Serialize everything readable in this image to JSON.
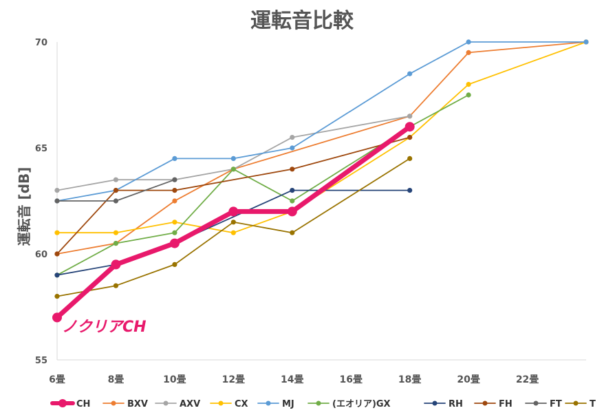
{
  "chart_data": {
    "type": "line",
    "title": "運転音比較",
    "ylabel": "運転音 [dB]",
    "xlabel": "",
    "categories": [
      "6畳",
      "8畳",
      "10畳",
      "12畳",
      "14畳",
      "16畳",
      "18畳",
      "20畳",
      "22畳",
      ""
    ],
    "ylim": [
      55,
      70
    ],
    "yticks": [
      "55",
      "60",
      "65",
      "70"
    ],
    "grid": false,
    "legend_position": "bottom",
    "annotation": {
      "text": "ノクリアCH",
      "color": "#e8196b"
    },
    "series": [
      {
        "name": "CH",
        "color": "#e8196b",
        "highlight": true,
        "values": [
          57,
          59.5,
          60.5,
          62,
          62,
          null,
          66,
          null,
          null,
          null
        ]
      },
      {
        "name": "BXV",
        "color": "#ed7d31",
        "values": [
          60,
          60.5,
          62.5,
          64,
          null,
          null,
          66.5,
          69.5,
          null,
          70
        ]
      },
      {
        "name": "AXV",
        "color": "#a5a5a5",
        "values": [
          63,
          63.5,
          63.5,
          64,
          65.5,
          null,
          66.5,
          null,
          null,
          null
        ]
      },
      {
        "name": "CX",
        "color": "#ffc000",
        "values": [
          61,
          61,
          61.5,
          61,
          62,
          null,
          65.5,
          68,
          null,
          70
        ]
      },
      {
        "name": "MJ",
        "color": "#5b9bd5",
        "values": [
          62.5,
          63,
          64.5,
          64.5,
          65,
          null,
          68.5,
          70,
          null,
          70
        ]
      },
      {
        "name": "(エオリア)GX",
        "color": "#70ad47",
        "values": [
          59,
          60.5,
          61,
          64,
          62.5,
          null,
          66,
          67.5,
          null,
          null
        ]
      },
      {
        "name": "RH",
        "color": "#264478",
        "values": [
          59,
          59.5,
          60.5,
          null,
          63,
          null,
          63,
          null,
          null,
          null
        ]
      },
      {
        "name": "FH",
        "color": "#9e480e",
        "values": [
          60,
          63,
          63,
          null,
          64,
          null,
          65.5,
          null,
          null,
          null
        ]
      },
      {
        "name": "FT",
        "color": "#636363",
        "values": [
          62.5,
          62.5,
          63.5,
          null,
          null,
          null,
          null,
          null,
          null,
          null
        ]
      },
      {
        "name": "T",
        "color": "#997300",
        "values": [
          58,
          58.5,
          59.5,
          61.5,
          61,
          null,
          64.5,
          null,
          null,
          null
        ]
      }
    ]
  }
}
